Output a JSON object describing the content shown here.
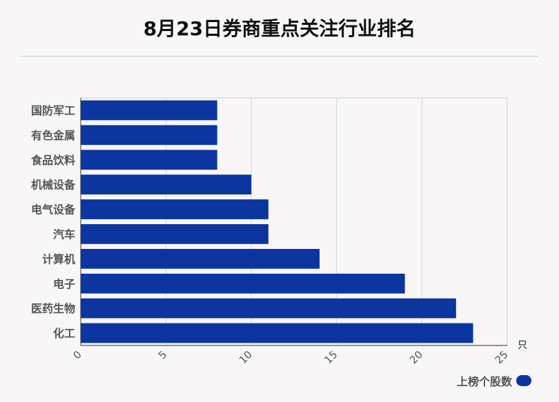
{
  "title": "8月23日券商重点关注行业排名",
  "chart_data": {
    "type": "bar",
    "orientation": "horizontal",
    "categories": [
      "国防军工",
      "有色金属",
      "食品饮料",
      "机械设备",
      "电气设备",
      "汽车",
      "计算机",
      "电子",
      "医药生物",
      "化工"
    ],
    "series": [
      {
        "name": "上榜个股数",
        "values": [
          8,
          8,
          8,
          10,
          11,
          11,
          14,
          19,
          22,
          23
        ]
      }
    ],
    "xlim": [
      0,
      25
    ],
    "xticks": [
      0,
      5,
      10,
      15,
      20,
      25
    ],
    "x_unit": "只",
    "grid": true,
    "legend_position": "bottom-right",
    "bar_color": "#0c35a0"
  }
}
